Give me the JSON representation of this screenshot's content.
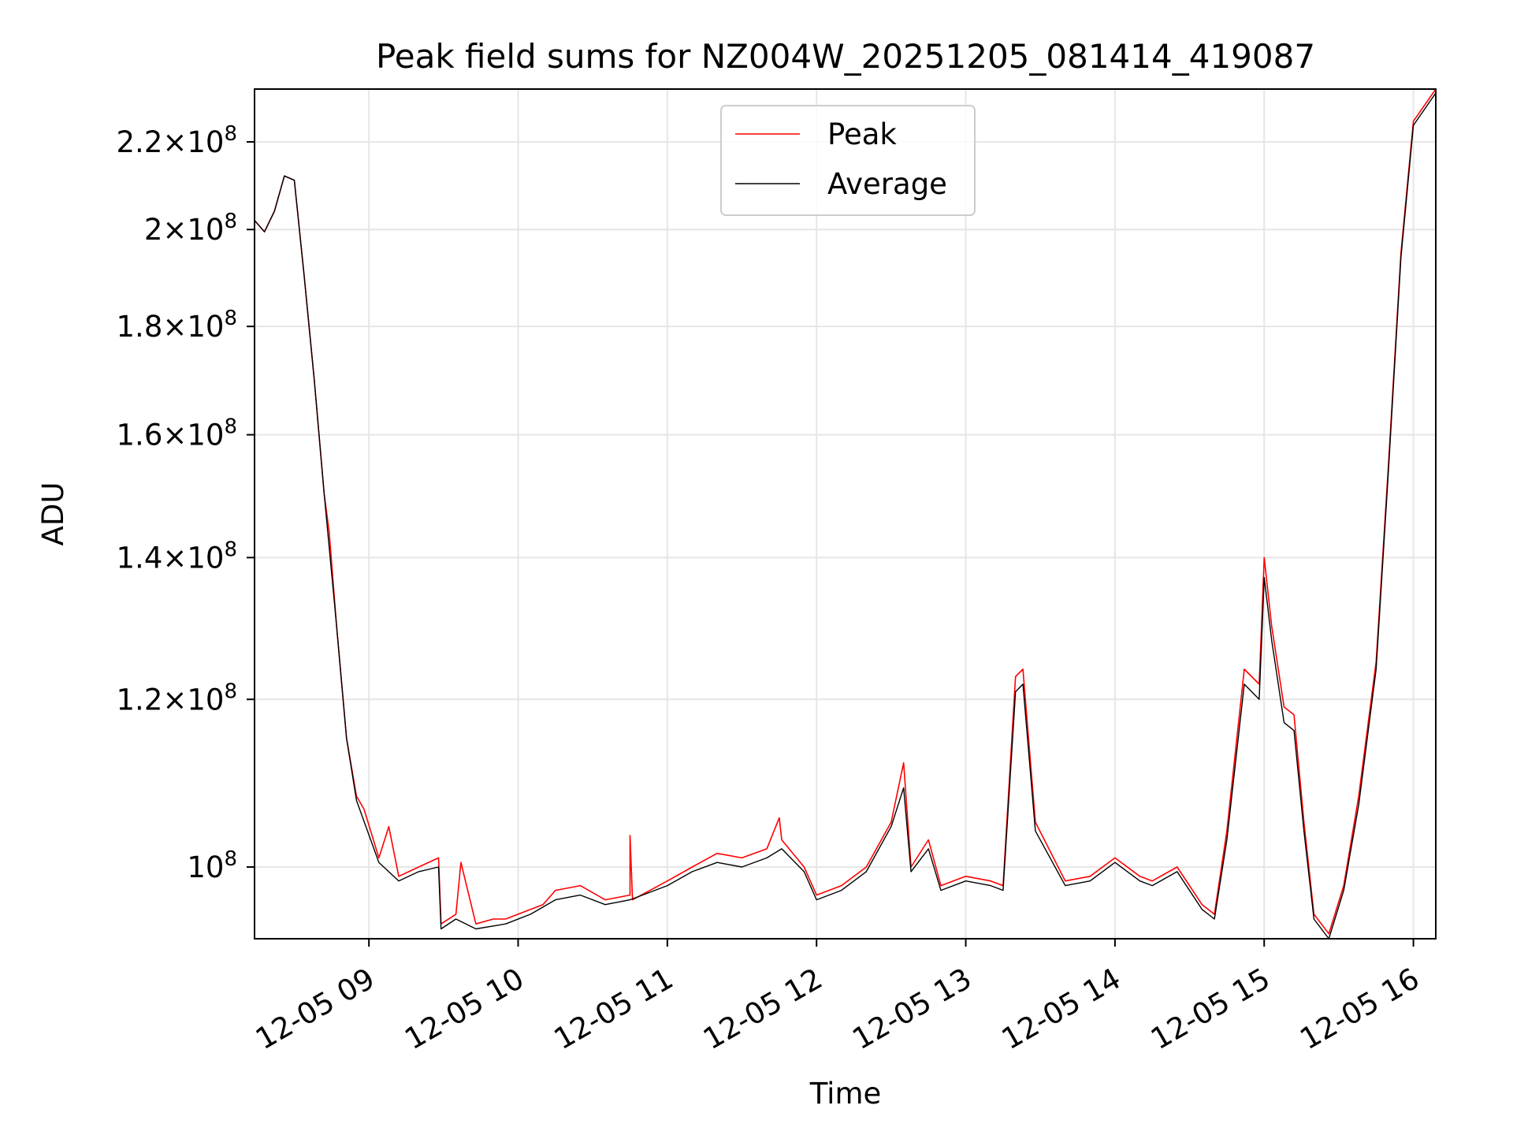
{
  "chart_data": {
    "type": "line",
    "title": "Peak field sums for NZ004W_20251205_081414_419087",
    "xlabel": "Time",
    "ylabel": "ADU",
    "yscale": "log",
    "ylim": [
      92500000,
      233000000
    ],
    "xlim": [
      "2025-12-05 08:14",
      "2025-12-05 16:09"
    ],
    "grid": true,
    "legend_position": "upper center",
    "x_ticks": [
      {
        "t": "2025-12-05 09:00",
        "label": "12-05 09"
      },
      {
        "t": "2025-12-05 10:00",
        "label": "12-05 10"
      },
      {
        "t": "2025-12-05 11:00",
        "label": "12-05 11"
      },
      {
        "t": "2025-12-05 12:00",
        "label": "12-05 12"
      },
      {
        "t": "2025-12-05 13:00",
        "label": "12-05 13"
      },
      {
        "t": "2025-12-05 14:00",
        "label": "12-05 14"
      },
      {
        "t": "2025-12-05 15:00",
        "label": "12-05 15"
      },
      {
        "t": "2025-12-05 16:00",
        "label": "12-05 16"
      }
    ],
    "y_ticks": [
      {
        "value": 100000000,
        "mant": "",
        "exp": "8"
      },
      {
        "value": 120000000,
        "mant": "1.2",
        "exp": "8"
      },
      {
        "value": 140000000,
        "mant": "1.4",
        "exp": "8"
      },
      {
        "value": 160000000,
        "mant": "1.6",
        "exp": "8"
      },
      {
        "value": 180000000,
        "mant": "1.8",
        "exp": "8"
      },
      {
        "value": 200000000,
        "mant": "2",
        "exp": "8"
      },
      {
        "value": 220000000,
        "mant": "2.2",
        "exp": "8"
      }
    ],
    "series": [
      {
        "name": "Peak",
        "color": "#ff0000",
        "points": [
          [
            "2025-12-05 08:14",
            202000000.0
          ],
          [
            "2025-12-05 08:18",
            199500000.0
          ],
          [
            "2025-12-05 08:22",
            204000000.0
          ],
          [
            "2025-12-05 08:26",
            212000000.0
          ],
          [
            "2025-12-05 08:30",
            211000000.0
          ],
          [
            "2025-12-05 08:34",
            190000000.0
          ],
          [
            "2025-12-05 08:38",
            170000000.0
          ],
          [
            "2025-12-05 08:42",
            150000000.0
          ],
          [
            "2025-12-05 08:44",
            144000000.0
          ],
          [
            "2025-12-05 08:47",
            130000000.0
          ],
          [
            "2025-12-05 08:51",
            115000000.0
          ],
          [
            "2025-12-05 08:55",
            108000000.0
          ],
          [
            "2025-12-05 08:58",
            106500000.0
          ],
          [
            "2025-12-05 09:04",
            101000000.0
          ],
          [
            "2025-12-05 09:08",
            104500000.0
          ],
          [
            "2025-12-05 09:12",
            99000000.0
          ],
          [
            "2025-12-05 09:20",
            100000000.0
          ],
          [
            "2025-12-05 09:28",
            101000000.0
          ],
          [
            "2025-12-05 09:29",
            94000000.0
          ],
          [
            "2025-12-05 09:35",
            95000000.0
          ],
          [
            "2025-12-05 09:37",
            100500000.0
          ],
          [
            "2025-12-05 09:43",
            94000000.0
          ],
          [
            "2025-12-05 09:50",
            94500000.0
          ],
          [
            "2025-12-05 09:55",
            94500000.0
          ],
          [
            "2025-12-05 10:05",
            95500000.0
          ],
          [
            "2025-12-05 10:10",
            96000000.0
          ],
          [
            "2025-12-05 10:15",
            97500000.0
          ],
          [
            "2025-12-05 10:25",
            98000000.0
          ],
          [
            "2025-12-05 10:35",
            96500000.0
          ],
          [
            "2025-12-05 10:45",
            97000000.0
          ],
          [
            "2025-12-05 10:45",
            103500000.0
          ],
          [
            "2025-12-05 10:46",
            96500000.0
          ],
          [
            "2025-12-05 11:00",
            98500000.0
          ],
          [
            "2025-12-05 11:10",
            100000000.0
          ],
          [
            "2025-12-05 11:20",
            101500000.0
          ],
          [
            "2025-12-05 11:30",
            101000000.0
          ],
          [
            "2025-12-05 11:40",
            102000000.0
          ],
          [
            "2025-12-05 11:45",
            105500000.0
          ],
          [
            "2025-12-05 11:46",
            103000000.0
          ],
          [
            "2025-12-05 11:55",
            100000000.0
          ],
          [
            "2025-12-05 12:00",
            97000000.0
          ],
          [
            "2025-12-05 12:10",
            98000000.0
          ],
          [
            "2025-12-05 12:20",
            100000000.0
          ],
          [
            "2025-12-05 12:30",
            105000000.0
          ],
          [
            "2025-12-05 12:35",
            112000000.0
          ],
          [
            "2025-12-05 12:38",
            100000000.0
          ],
          [
            "2025-12-05 12:45",
            103000000.0
          ],
          [
            "2025-12-05 12:50",
            98000000.0
          ],
          [
            "2025-12-05 13:00",
            99000000.0
          ],
          [
            "2025-12-05 13:10",
            98500000.0
          ],
          [
            "2025-12-05 13:15",
            98000000.0
          ],
          [
            "2025-12-05 13:20",
            123000000.0
          ],
          [
            "2025-12-05 13:23",
            124000000.0
          ],
          [
            "2025-12-05 13:28",
            105000000.0
          ],
          [
            "2025-12-05 13:40",
            98500000.0
          ],
          [
            "2025-12-05 13:50",
            99000000.0
          ],
          [
            "2025-12-05 14:00",
            101000000.0
          ],
          [
            "2025-12-05 14:10",
            99000000.0
          ],
          [
            "2025-12-05 14:15",
            98500000.0
          ],
          [
            "2025-12-05 14:25",
            100000000.0
          ],
          [
            "2025-12-05 14:35",
            96000000.0
          ],
          [
            "2025-12-05 14:40",
            95000000.0
          ],
          [
            "2025-12-05 14:45",
            104000000.0
          ],
          [
            "2025-12-05 14:52",
            124000000.0
          ],
          [
            "2025-12-05 14:58",
            122000000.0
          ],
          [
            "2025-12-05 15:00",
            140000000.0
          ],
          [
            "2025-12-05 15:03",
            130000000.0
          ],
          [
            "2025-12-05 15:08",
            119000000.0
          ],
          [
            "2025-12-05 15:12",
            118000000.0
          ],
          [
            "2025-12-05 15:16",
            105000000.0
          ],
          [
            "2025-12-05 15:20",
            95000000.0
          ],
          [
            "2025-12-05 15:26",
            93000000.0
          ],
          [
            "2025-12-05 15:32",
            98000000.0
          ],
          [
            "2025-12-05 15:38",
            108000000.0
          ],
          [
            "2025-12-05 15:45",
            125000000.0
          ],
          [
            "2025-12-05 15:50",
            155000000.0
          ],
          [
            "2025-12-05 15:55",
            195000000.0
          ],
          [
            "2025-12-05 16:00",
            225000000.0
          ],
          [
            "2025-12-05 16:09",
            233000000.0
          ]
        ]
      },
      {
        "name": "Average",
        "color": "#000000",
        "points": [
          [
            "2025-12-05 08:14",
            202000000.0
          ],
          [
            "2025-12-05 08:18",
            199500000.0
          ],
          [
            "2025-12-05 08:22",
            204000000.0
          ],
          [
            "2025-12-05 08:26",
            212000000.0
          ],
          [
            "2025-12-05 08:30",
            211000000.0
          ],
          [
            "2025-12-05 08:34",
            190000000.0
          ],
          [
            "2025-12-05 08:38",
            170000000.0
          ],
          [
            "2025-12-05 08:42",
            150000000.0
          ],
          [
            "2025-12-05 08:47",
            130000000.0
          ],
          [
            "2025-12-05 08:51",
            115000000.0
          ],
          [
            "2025-12-05 08:55",
            107500000.0
          ],
          [
            "2025-12-05 09:04",
            100500000.0
          ],
          [
            "2025-12-05 09:12",
            98500000.0
          ],
          [
            "2025-12-05 09:20",
            99500000.0
          ],
          [
            "2025-12-05 09:28",
            100000000.0
          ],
          [
            "2025-12-05 09:29",
            93500000.0
          ],
          [
            "2025-12-05 09:35",
            94500000.0
          ],
          [
            "2025-12-05 09:43",
            93500000.0
          ],
          [
            "2025-12-05 09:55",
            94000000.0
          ],
          [
            "2025-12-05 10:05",
            95000000.0
          ],
          [
            "2025-12-05 10:15",
            96500000.0
          ],
          [
            "2025-12-05 10:25",
            97000000.0
          ],
          [
            "2025-12-05 10:35",
            96000000.0
          ],
          [
            "2025-12-05 10:45",
            96500000.0
          ],
          [
            "2025-12-05 11:00",
            98000000.0
          ],
          [
            "2025-12-05 11:10",
            99500000.0
          ],
          [
            "2025-12-05 11:20",
            100500000.0
          ],
          [
            "2025-12-05 11:30",
            100000000.0
          ],
          [
            "2025-12-05 11:40",
            101000000.0
          ],
          [
            "2025-12-05 11:46",
            102000000.0
          ],
          [
            "2025-12-05 11:55",
            99500000.0
          ],
          [
            "2025-12-05 12:00",
            96500000.0
          ],
          [
            "2025-12-05 12:10",
            97500000.0
          ],
          [
            "2025-12-05 12:20",
            99500000.0
          ],
          [
            "2025-12-05 12:30",
            104500000.0
          ],
          [
            "2025-12-05 12:35",
            109000000.0
          ],
          [
            "2025-12-05 12:38",
            99500000.0
          ],
          [
            "2025-12-05 12:45",
            102000000.0
          ],
          [
            "2025-12-05 12:50",
            97500000.0
          ],
          [
            "2025-12-05 13:00",
            98500000.0
          ],
          [
            "2025-12-05 13:10",
            98000000.0
          ],
          [
            "2025-12-05 13:15",
            97500000.0
          ],
          [
            "2025-12-05 13:20",
            121000000.0
          ],
          [
            "2025-12-05 13:23",
            122000000.0
          ],
          [
            "2025-12-05 13:28",
            104000000.0
          ],
          [
            "2025-12-05 13:40",
            98000000.0
          ],
          [
            "2025-12-05 13:50",
            98500000.0
          ],
          [
            "2025-12-05 14:00",
            100500000.0
          ],
          [
            "2025-12-05 14:10",
            98500000.0
          ],
          [
            "2025-12-05 14:15",
            98000000.0
          ],
          [
            "2025-12-05 14:25",
            99500000.0
          ],
          [
            "2025-12-05 14:35",
            95500000.0
          ],
          [
            "2025-12-05 14:40",
            94500000.0
          ],
          [
            "2025-12-05 14:45",
            103000000.0
          ],
          [
            "2025-12-05 14:52",
            122000000.0
          ],
          [
            "2025-12-05 14:58",
            120000000.0
          ],
          [
            "2025-12-05 15:00",
            137000000.0
          ],
          [
            "2025-12-05 15:03",
            128000000.0
          ],
          [
            "2025-12-05 15:08",
            117000000.0
          ],
          [
            "2025-12-05 15:12",
            116000000.0
          ],
          [
            "2025-12-05 15:16",
            104000000.0
          ],
          [
            "2025-12-05 15:20",
            94500000.0
          ],
          [
            "2025-12-05 15:26",
            92500000.0
          ],
          [
            "2025-12-05 15:32",
            97500000.0
          ],
          [
            "2025-12-05 15:38",
            107000000.0
          ],
          [
            "2025-12-05 15:45",
            124000000.0
          ],
          [
            "2025-12-05 15:50",
            154000000.0
          ],
          [
            "2025-12-05 15:55",
            194000000.0
          ],
          [
            "2025-12-05 16:00",
            224000000.0
          ],
          [
            "2025-12-05 16:09",
            232000000.0
          ]
        ]
      }
    ]
  }
}
